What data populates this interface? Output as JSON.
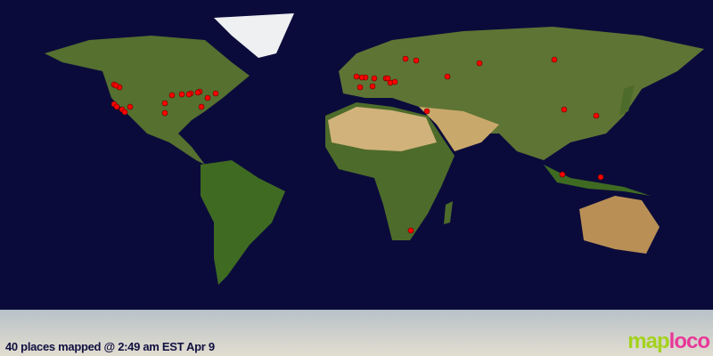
{
  "map": {
    "caption": "40 places mapped @ 2:49 am EST Apr 9",
    "marker_color": "#ff0000",
    "ocean_color": "#0b0b3b",
    "land_color": "#4d6b2a",
    "desert_color": "#c9a96b",
    "ice_color": "#dfe3e6",
    "marker_count": 40
  },
  "logo": {
    "part1": "map",
    "part2": "loco",
    "color1": "#a4d21c",
    "color2": "#e8389a"
  }
}
